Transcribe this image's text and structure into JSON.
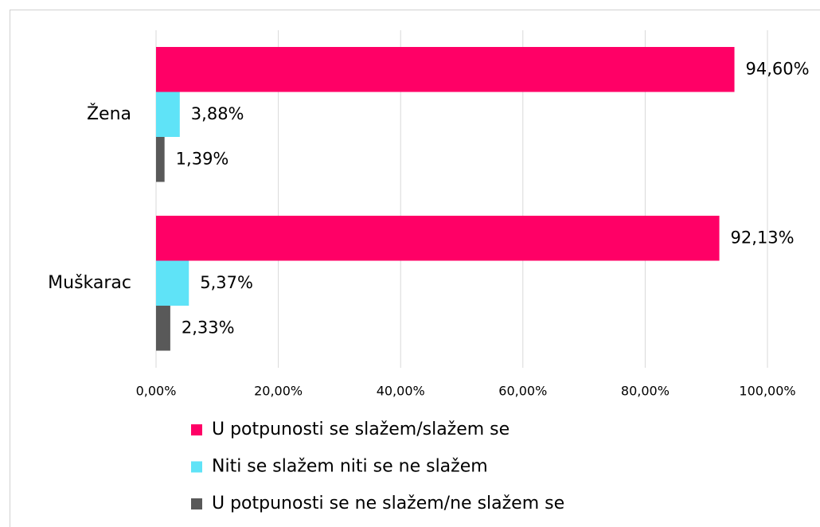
{
  "chart_data": {
    "type": "barh",
    "categories": [
      "Žena",
      "Muškarac"
    ],
    "series": [
      {
        "name": "U potpunosti se slažem/slažem se",
        "color": "#ff0066",
        "values": [
          94.6,
          92.13
        ],
        "value_labels": [
          "94,60%",
          "92,13%"
        ]
      },
      {
        "name": "Niti se slažem niti se ne slažem",
        "color": "#5fe3f7",
        "values": [
          3.88,
          5.37
        ],
        "value_labels": [
          "3,88%",
          "5,37%"
        ]
      },
      {
        "name": "U potpunosti se ne slažem/ne slažem se",
        "color": "#595959",
        "values": [
          1.39,
          2.33
        ],
        "value_labels": [
          "1,39%",
          "2,33%"
        ]
      }
    ],
    "xlim": [
      0,
      100
    ],
    "xticks": [
      {
        "value": 0,
        "label": "0,00%"
      },
      {
        "value": 20,
        "label": "20,00%"
      },
      {
        "value": 40,
        "label": "40,00%"
      },
      {
        "value": 60,
        "label": "60,00%"
      },
      {
        "value": 80,
        "label": "80,00%"
      },
      {
        "value": 100,
        "label": "100,00%"
      }
    ],
    "grid": true,
    "legend": "bottom"
  }
}
